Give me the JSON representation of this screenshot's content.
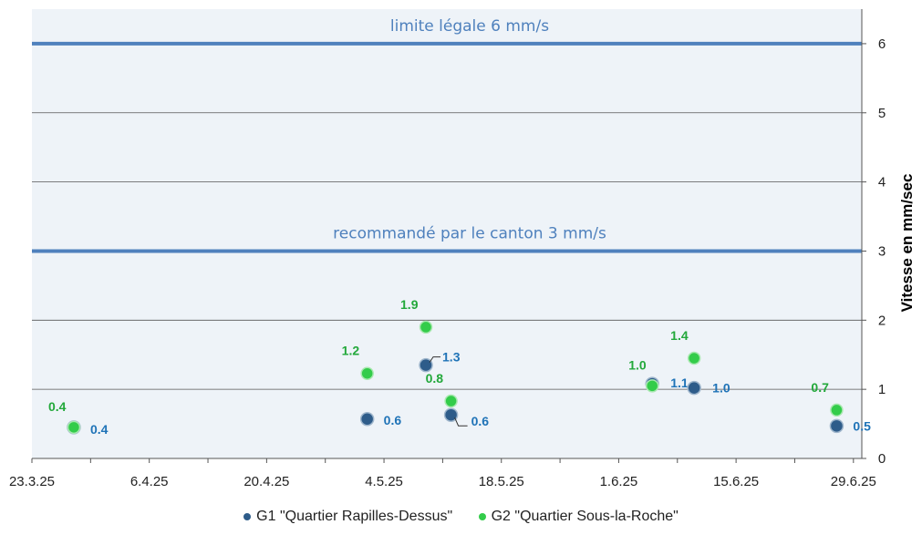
{
  "chart_data": {
    "type": "scatter",
    "title": "",
    "xlabel": "",
    "ylabel": "Vitesse en mm/sec",
    "ylim": [
      0,
      6.5
    ],
    "y_ticks": [
      "0",
      "1",
      "2",
      "3",
      "4",
      "5",
      "6"
    ],
    "x_tick_labels": [
      "23.3.25",
      "6.4.25",
      "20.4.25",
      "4.5.25",
      "18.5.25",
      "1.6.25",
      "15.6.25",
      "29.6.25"
    ],
    "x_day_range": [
      0,
      99
    ],
    "x_tick_days": [
      0,
      14,
      28,
      42,
      56,
      70,
      84,
      98
    ],
    "series": [
      {
        "name": "G1 \"Quartier Rapilles-Dessus\"",
        "color": "#2e5c8a",
        "label_color": "#1f73b7",
        "points": [
          {
            "day": 5,
            "y": 0.45,
            "label": "0.4"
          },
          {
            "day": 40,
            "y": 0.57,
            "label": "0.6"
          },
          {
            "day": 47,
            "y": 1.35,
            "label": "1.3"
          },
          {
            "day": 50,
            "y": 0.63,
            "label": "0.6"
          },
          {
            "day": 74,
            "y": 1.08,
            "label": "1.1"
          },
          {
            "day": 79,
            "y": 1.02,
            "label": "1.0"
          },
          {
            "day": 96,
            "y": 0.47,
            "label": "0.5"
          }
        ]
      },
      {
        "name": "G2 \"Quartier Sous-la-Roche\"",
        "color": "#33cc4a",
        "label_color": "#22a83a",
        "points": [
          {
            "day": 5,
            "y": 0.45,
            "label": "0.4"
          },
          {
            "day": 40,
            "y": 1.23,
            "label": "1.2"
          },
          {
            "day": 47,
            "y": 1.9,
            "label": "1.9"
          },
          {
            "day": 50,
            "y": 0.83,
            "label": "0.8"
          },
          {
            "day": 74,
            "y": 1.05,
            "label": "1.0"
          },
          {
            "day": 79,
            "y": 1.45,
            "label": "1.4"
          },
          {
            "day": 96,
            "y": 0.7,
            "label": "0.7"
          }
        ]
      }
    ],
    "reference_lines": [
      {
        "y": 6,
        "label": "limite légale 6 mm/s"
      },
      {
        "y": 3,
        "label": "recommandé par le canton 3 mm/s"
      }
    ],
    "grid": true,
    "legend_position": "bottom"
  },
  "legend": {
    "items": [
      {
        "label": "G1 \"Quartier Rapilles-Dessus\"",
        "color": "#2e5c8a"
      },
      {
        "label": "G2 \"Quartier Sous-la-Roche\"",
        "color": "#33cc4a"
      }
    ]
  },
  "colors": {
    "plot_background": "#eef3f8",
    "reference_line": "#4f81bd",
    "reference_label": "#4f81bd",
    "grid": "#555555"
  }
}
